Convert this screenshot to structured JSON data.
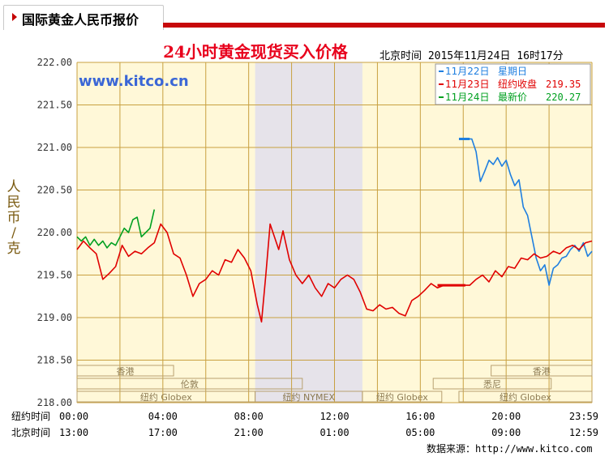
{
  "header": {
    "title": "国际黄金人民币报价"
  },
  "footer": {
    "source": "数据来源：http://www.kitco.com"
  },
  "colors": {
    "plot_bg": "#fff8d8",
    "grid": "#c8a040",
    "title": "#e8001c",
    "watermark": "#3a66d6",
    "series_blue": "#1f7fe0",
    "series_red": "#e00000",
    "series_green": "#00a020",
    "shade": "#e6e3ea",
    "axis_text": "#333333"
  },
  "chart_data": {
    "type": "line",
    "title": "24小时黄金现货买入价格",
    "subtitle": "北京时间  2015年11月24日 16时17分",
    "watermark": "www.kitco.cn",
    "ylabel": "人民币/克",
    "ylim": [
      218.0,
      222.0
    ],
    "yticks": [
      "222.00",
      "221.50",
      "221.00",
      "220.50",
      "220.00",
      "219.50",
      "219.00",
      "218.50",
      "218.00"
    ],
    "xlim_hours": [
      0,
      24
    ],
    "x_rows": [
      {
        "label": "纽约时间",
        "ticks": [
          "00:00",
          "04:00",
          "08:00",
          "12:00",
          "16:00",
          "20:00",
          "23:59"
        ]
      },
      {
        "label": "北京时间",
        "ticks": [
          "13:00",
          "17:00",
          "21:00",
          "01:00",
          "05:00",
          "09:00",
          "12:59"
        ]
      }
    ],
    "shaded_range_hours": [
      8.3,
      13.3
    ],
    "legend": [
      {
        "date": "11月22日",
        "label": "星期日",
        "value": "",
        "color": "#1f7fe0"
      },
      {
        "date": "11月23日",
        "label": "纽约收盘",
        "value": "219.35",
        "color": "#e00000"
      },
      {
        "date": "11月24日",
        "label": "最新价",
        "value": "220.27",
        "color": "#00a020"
      }
    ],
    "sessions": [
      {
        "label": "香港",
        "row": 0,
        "start": 0.0,
        "end": 4.5
      },
      {
        "label": "香港",
        "row": 0,
        "start": 19.3,
        "end": 24.0
      },
      {
        "label": "伦敦",
        "row": 1,
        "start": 0.0,
        "end": 10.5
      },
      {
        "label": "悉尼",
        "row": 1,
        "start": 16.6,
        "end": 22.1
      },
      {
        "label": "纽约 Globex",
        "row": 2,
        "start": 0.0,
        "end": 8.3
      },
      {
        "label": "纽约 NYMEX",
        "row": 2,
        "start": 8.3,
        "end": 13.3
      },
      {
        "label": "纽约 Globex",
        "row": 2,
        "start": 13.3,
        "end": 17.0
      },
      {
        "label": "纽约 Globex",
        "row": 2,
        "start": 17.8,
        "end": 24.0
      }
    ],
    "series": [
      {
        "name": "11月22日",
        "color": "#1f7fe0",
        "x": [
          17.8,
          18.0,
          18.2,
          18.4,
          18.6,
          18.8,
          19.0,
          19.2,
          19.4,
          19.6,
          19.8,
          20.0,
          20.2,
          20.4,
          20.6,
          20.8,
          21.0,
          21.2,
          21.4,
          21.6,
          21.8,
          22.0,
          22.2,
          22.4,
          22.6,
          22.8,
          23.0,
          23.2,
          23.4,
          23.6,
          23.8,
          24.0
        ],
        "values": [
          221.1,
          221.1,
          221.1,
          221.1,
          220.95,
          220.6,
          220.72,
          220.85,
          220.8,
          220.88,
          220.78,
          220.85,
          220.68,
          220.55,
          220.62,
          220.3,
          220.2,
          219.95,
          219.7,
          219.55,
          219.62,
          219.38,
          219.58,
          219.62,
          219.7,
          219.72,
          219.8,
          219.85,
          219.78,
          219.88,
          219.72,
          219.78
        ]
      },
      {
        "name": "11月23日",
        "color": "#e00000",
        "x": [
          0.0,
          0.3,
          0.6,
          0.9,
          1.2,
          1.5,
          1.8,
          2.1,
          2.4,
          2.7,
          3.0,
          3.3,
          3.6,
          3.9,
          4.2,
          4.5,
          4.8,
          5.1,
          5.4,
          5.7,
          6.0,
          6.3,
          6.6,
          6.9,
          7.2,
          7.5,
          7.8,
          8.1,
          8.4,
          8.6,
          8.8,
          9.0,
          9.2,
          9.4,
          9.6,
          9.9,
          10.2,
          10.5,
          10.8,
          11.1,
          11.4,
          11.7,
          12.0,
          12.3,
          12.6,
          12.9,
          13.2,
          13.5,
          13.8,
          14.1,
          14.4,
          14.7,
          15.0,
          15.3,
          15.6,
          15.9,
          16.2,
          16.5,
          16.8,
          17.1,
          17.4,
          17.7,
          18.0,
          18.3,
          18.6,
          18.9,
          19.2,
          19.5,
          19.8,
          20.1,
          20.4,
          20.7,
          21.0,
          21.3,
          21.6,
          21.9,
          22.2,
          22.5,
          22.8,
          23.1,
          23.4,
          23.7,
          24.0
        ],
        "values": [
          219.8,
          219.9,
          219.82,
          219.75,
          219.45,
          219.52,
          219.6,
          219.85,
          219.72,
          219.78,
          219.75,
          219.82,
          219.88,
          220.1,
          220.0,
          219.75,
          219.7,
          219.5,
          219.25,
          219.4,
          219.45,
          219.55,
          219.5,
          219.68,
          219.65,
          219.8,
          219.7,
          219.55,
          219.15,
          218.95,
          219.5,
          220.1,
          219.95,
          219.8,
          220.02,
          219.68,
          219.5,
          219.4,
          219.5,
          219.35,
          219.25,
          219.4,
          219.35,
          219.45,
          219.5,
          219.45,
          219.3,
          219.1,
          219.08,
          219.15,
          219.1,
          219.12,
          219.05,
          219.02,
          219.2,
          219.25,
          219.32,
          219.4,
          219.35,
          219.38,
          219.38,
          219.38,
          219.38,
          219.38,
          219.45,
          219.5,
          219.42,
          219.55,
          219.48,
          219.6,
          219.58,
          219.7,
          219.68,
          219.75,
          219.7,
          219.72,
          219.78,
          219.75,
          219.82,
          219.85,
          219.8,
          219.88,
          219.9
        ]
      },
      {
        "name": "11月24日",
        "color": "#00a020",
        "x": [
          0.0,
          0.2,
          0.4,
          0.6,
          0.8,
          1.0,
          1.2,
          1.4,
          1.6,
          1.8,
          2.0,
          2.2,
          2.4,
          2.6,
          2.8,
          3.0,
          3.2,
          3.4,
          3.6
        ],
        "values": [
          219.95,
          219.9,
          219.95,
          219.85,
          219.92,
          219.85,
          219.9,
          219.82,
          219.88,
          219.85,
          219.95,
          220.05,
          220.0,
          220.15,
          220.18,
          219.95,
          220.0,
          220.05,
          220.27
        ]
      }
    ]
  }
}
